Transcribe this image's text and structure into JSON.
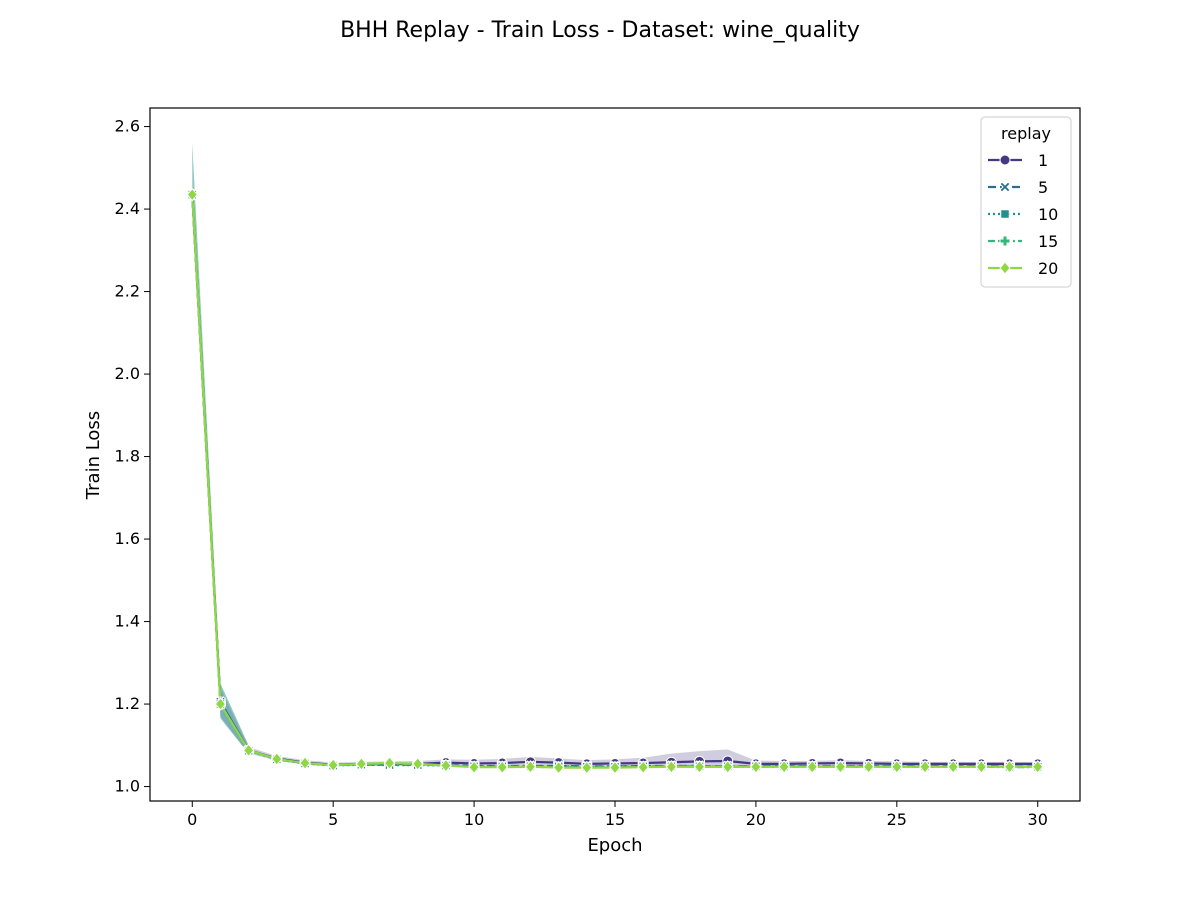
{
  "chart_data": {
    "type": "line",
    "title": "BHH Replay - Train Loss - Dataset: wine_quality",
    "xlabel": "Epoch",
    "ylabel": "Train Loss",
    "xlim": [
      -1.5,
      31.5
    ],
    "ylim": [
      0.965,
      2.645
    ],
    "xticks": [
      0,
      5,
      10,
      15,
      20,
      25,
      30
    ],
    "yticks": [
      1.0,
      1.2,
      1.4,
      1.6,
      1.8,
      2.0,
      2.2,
      2.4,
      2.6
    ],
    "ytick_labels": [
      "1.0",
      "1.2",
      "1.4",
      "1.6",
      "1.8",
      "2.0",
      "2.2",
      "2.4",
      "2.6"
    ],
    "grid": false,
    "legend": {
      "title": "replay",
      "placement": "top-right"
    },
    "x": [
      0,
      1,
      2,
      3,
      4,
      5,
      6,
      7,
      8,
      9,
      10,
      11,
      12,
      13,
      14,
      15,
      16,
      17,
      18,
      19,
      20,
      21,
      22,
      23,
      24,
      25,
      26,
      27,
      28,
      29,
      30
    ],
    "series": [
      {
        "name": "1",
        "color": "#453781",
        "marker": "circle",
        "dash": "solid",
        "values": [
          2.435,
          1.205,
          1.088,
          1.068,
          1.058,
          1.053,
          1.055,
          1.055,
          1.055,
          1.058,
          1.056,
          1.057,
          1.06,
          1.058,
          1.055,
          1.056,
          1.057,
          1.059,
          1.061,
          1.062,
          1.055,
          1.055,
          1.056,
          1.057,
          1.056,
          1.055,
          1.055,
          1.055,
          1.055,
          1.055,
          1.055
        ],
        "band_lower": [
          2.41,
          1.17,
          1.08,
          1.063,
          1.053,
          1.049,
          1.05,
          1.05,
          1.05,
          1.05,
          1.048,
          1.048,
          1.05,
          1.048,
          1.047,
          1.047,
          1.046,
          1.046,
          1.045,
          1.045,
          1.048,
          1.049,
          1.05,
          1.05,
          1.05,
          1.05,
          1.05,
          1.05,
          1.05,
          1.05,
          1.05
        ],
        "band_upper": [
          2.46,
          1.24,
          1.096,
          1.074,
          1.064,
          1.058,
          1.06,
          1.061,
          1.062,
          1.066,
          1.065,
          1.067,
          1.072,
          1.068,
          1.064,
          1.066,
          1.07,
          1.08,
          1.086,
          1.09,
          1.063,
          1.062,
          1.062,
          1.064,
          1.062,
          1.061,
          1.06,
          1.06,
          1.06,
          1.06,
          1.06
        ]
      },
      {
        "name": "5",
        "color": "#2a6f8e",
        "marker": "x",
        "dash": "8,4",
        "values": [
          2.435,
          1.205,
          1.088,
          1.067,
          1.057,
          1.052,
          1.054,
          1.053,
          1.053,
          1.052,
          1.05,
          1.05,
          1.05,
          1.05,
          1.049,
          1.049,
          1.05,
          1.05,
          1.05,
          1.049,
          1.05,
          1.05,
          1.05,
          1.05,
          1.05,
          1.05,
          1.05,
          1.05,
          1.05,
          1.049,
          1.049
        ]
      },
      {
        "name": "10",
        "color": "#21918c",
        "marker": "square",
        "dash": "2,3",
        "values": [
          2.435,
          1.2,
          1.087,
          1.066,
          1.056,
          1.051,
          1.053,
          1.052,
          1.052,
          1.051,
          1.049,
          1.049,
          1.049,
          1.049,
          1.048,
          1.048,
          1.049,
          1.049,
          1.049,
          1.049,
          1.049,
          1.049,
          1.049,
          1.049,
          1.049,
          1.049,
          1.049,
          1.049,
          1.049,
          1.048,
          1.048
        ]
      },
      {
        "name": "15",
        "color": "#35b779",
        "marker": "plus",
        "dash": "7,3,2,3",
        "values": [
          2.435,
          1.2,
          1.087,
          1.066,
          1.056,
          1.052,
          1.054,
          1.055,
          1.054,
          1.051,
          1.048,
          1.048,
          1.048,
          1.047,
          1.047,
          1.047,
          1.048,
          1.049,
          1.049,
          1.048,
          1.048,
          1.048,
          1.048,
          1.048,
          1.048,
          1.048,
          1.048,
          1.048,
          1.048,
          1.047,
          1.047
        ]
      },
      {
        "name": "20",
        "color": "#8fd744",
        "marker": "diamond",
        "dash": "solid",
        "values": [
          2.435,
          1.2,
          1.088,
          1.067,
          1.057,
          1.052,
          1.055,
          1.057,
          1.055,
          1.051,
          1.047,
          1.047,
          1.048,
          1.046,
          1.046,
          1.046,
          1.047,
          1.048,
          1.048,
          1.048,
          1.048,
          1.048,
          1.048,
          1.048,
          1.048,
          1.048,
          1.048,
          1.048,
          1.048,
          1.048,
          1.048
        ]
      }
    ]
  }
}
